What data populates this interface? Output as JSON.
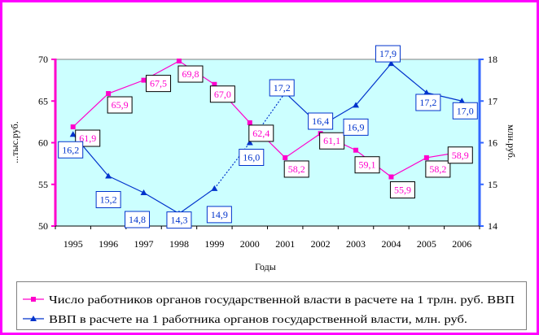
{
  "chart_data": {
    "type": "line",
    "xlabel": "Годы",
    "categories": [
      "1995",
      "1996",
      "1997",
      "1998",
      "1999",
      "2000",
      "2001",
      "2002",
      "2003",
      "2004",
      "2005",
      "2006"
    ],
    "left_axis": {
      "range": [
        50,
        70
      ],
      "ticks": [
        "50",
        "55",
        "60",
        "65",
        "70"
      ],
      "label": "...тыс.руб."
    },
    "right_axis": {
      "range": [
        14,
        18
      ],
      "ticks": [
        "14",
        "15",
        "16",
        "17",
        "18"
      ],
      "label": "млн.руб."
    },
    "series": [
      {
        "name": "Число работников органов государственной власти в расчете на 1 трлн. руб. ВВП",
        "axis": "left",
        "color": "#ff00cc",
        "marker": "square",
        "values": [
          61.9,
          65.9,
          67.5,
          69.8,
          67.0,
          62.4,
          58.2,
          61.1,
          59.1,
          55.9,
          58.2,
          58.9
        ],
        "labels": [
          "61,9",
          "65,9",
          "67,5",
          "69,8",
          "67,0",
          "62,4",
          "58,2",
          "61,1",
          "59,1",
          "55,9",
          "58,2",
          "58,9"
        ]
      },
      {
        "name": "ВВП в расчете на  1 работника органов государственной власти, млн. руб.",
        "axis": "right",
        "color": "#0033cc",
        "marker": "triangle",
        "values": [
          16.2,
          15.2,
          14.8,
          14.3,
          14.9,
          16.0,
          17.2,
          16.4,
          16.9,
          17.9,
          17.2,
          17.0
        ],
        "labels": [
          "16,2",
          "15,2",
          "14,8",
          "14,3",
          "14,9",
          "16,0",
          "17,2",
          "16,4",
          "16,9",
          "17,9",
          "17,2",
          "17,0"
        ]
      }
    ],
    "plot_background": "#ccffff",
    "frame_color": "#ff00ff",
    "legend_position": "bottom"
  }
}
